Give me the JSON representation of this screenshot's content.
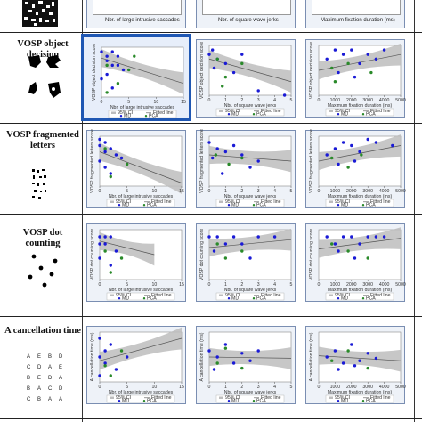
{
  "rows": [
    {
      "id": "row0",
      "label": ""
    },
    {
      "id": "row1",
      "label": "VOSP object decision"
    },
    {
      "id": "row2",
      "label": "VOSP fragmented letters"
    },
    {
      "id": "row3",
      "label": "VOSP dot counting"
    },
    {
      "id": "row4",
      "label": "A cancellation time"
    }
  ],
  "x_labels": {
    "saccades": "Nbr. of large intrusive saccades",
    "jerks": "Nbr. of square wave jerks",
    "fixation": "Maximum fixation duration (ms)"
  },
  "y_labels": {
    "row1": "VOSP object decision score",
    "row2": "VOSP fragmented letters score",
    "row3": "VOSP dot counting score",
    "row4": "A cancellation time (ms)"
  },
  "ticks": {
    "saccades": [
      "0",
      "5",
      "10",
      "15"
    ],
    "jerks": [
      "0",
      "1",
      "2",
      "3",
      "4",
      "5"
    ],
    "fixation": [
      "0",
      "1000",
      "2000",
      "3000",
      "4000",
      "5000"
    ]
  },
  "legend": {
    "ci": "95% CI",
    "fitted": "Fitted line",
    "md": "MD",
    "pca": "PCA"
  },
  "letters_grid": [
    [
      "A",
      "E",
      "B",
      "D"
    ],
    [
      "C",
      "D",
      "A",
      "E"
    ],
    [
      "B",
      "E",
      "D",
      "A"
    ],
    [
      "B",
      "A",
      "C",
      "D"
    ],
    [
      "C",
      "B",
      "A",
      "A"
    ]
  ],
  "colors": {
    "md": "#1a1ad6",
    "pca": "#2a8a2a",
    "ci": "#bdbdbd",
    "fit": "#555555",
    "highlight": "#1f57b3"
  },
  "chart_data": [
    {
      "type": "scatter",
      "row": "VOSP object decision",
      "x_var": "Nbr. of large intrusive saccades",
      "series": [
        {
          "name": "MD",
          "points": [
            [
              0,
              20
            ],
            [
              1,
              19
            ],
            [
              1,
              18
            ],
            [
              2,
              20
            ],
            [
              2,
              17
            ],
            [
              3,
              19
            ],
            [
              4,
              16
            ],
            [
              1,
              15
            ],
            [
              0,
              14
            ],
            [
              2,
              12
            ],
            [
              3,
              17
            ]
          ]
        },
        {
          "name": "PCA",
          "points": [
            [
              6,
              19
            ],
            [
              1,
              17
            ],
            [
              3,
              13
            ],
            [
              1,
              11
            ],
            [
              5,
              16
            ]
          ]
        }
      ],
      "fit": {
        "x": [
          0,
          15
        ],
        "y": [
          18.6,
          13
        ]
      }
    },
    {
      "type": "scatter",
      "row": "VOSP object decision",
      "x_var": "Nbr. of square wave jerks",
      "series": [
        {
          "name": "MD",
          "points": [
            [
              0,
              19
            ],
            [
              0.2,
              20
            ],
            [
              0.5,
              18
            ],
            [
              1,
              17
            ],
            [
              1.5,
              15
            ],
            [
              2,
              19
            ],
            [
              0.3,
              16
            ],
            [
              3,
              11
            ],
            [
              4.6,
              10
            ]
          ]
        },
        {
          "name": "PCA",
          "points": [
            [
              0.5,
              18
            ],
            [
              1,
              14
            ],
            [
              2,
              17
            ],
            [
              0.8,
              12
            ]
          ]
        }
      ],
      "fit": {
        "x": [
          0,
          5
        ],
        "y": [
          18,
          13
        ]
      }
    },
    {
      "type": "scatter",
      "row": "VOSP object decision",
      "x_var": "Maximum fixation duration (ms)",
      "series": [
        {
          "name": "MD",
          "points": [
            [
              500,
              18
            ],
            [
              1000,
              20
            ],
            [
              1500,
              19
            ],
            [
              2000,
              20
            ],
            [
              2500,
              17
            ],
            [
              3000,
              19
            ],
            [
              3500,
              18
            ],
            [
              1200,
              15
            ],
            [
              2200,
              14
            ],
            [
              4000,
              20
            ]
          ]
        },
        {
          "name": "PCA",
          "points": [
            [
              800,
              16
            ],
            [
              1800,
              17
            ],
            [
              3200,
              15
            ],
            [
              1000,
              13
            ]
          ]
        }
      ],
      "fit": {
        "x": [
          0,
          5000
        ],
        "y": [
          15.5,
          19
        ]
      }
    },
    {
      "type": "scatter",
      "row": "VOSP fragmented letters",
      "x_var": "Nbr. of large intrusive saccades",
      "series": [
        {
          "name": "MD",
          "points": [
            [
              0,
              20
            ],
            [
              1,
              19
            ],
            [
              0,
              18
            ],
            [
              2,
              17
            ],
            [
              1,
              16
            ],
            [
              3,
              15
            ],
            [
              0,
              13
            ],
            [
              1,
              11
            ],
            [
              2,
              9
            ],
            [
              4,
              14
            ]
          ]
        },
        {
          "name": "PCA",
          "points": [
            [
              1,
              17
            ],
            [
              5,
              12
            ],
            [
              2,
              8
            ]
          ]
        }
      ],
      "fit": {
        "x": [
          0,
          15
        ],
        "y": [
          16,
          6
        ]
      }
    },
    {
      "type": "scatter",
      "row": "VOSP fragmented letters",
      "x_var": "Nbr. of square wave jerks",
      "series": [
        {
          "name": "MD",
          "points": [
            [
              0,
              19
            ],
            [
              0.5,
              17
            ],
            [
              1,
              16
            ],
            [
              1.5,
              18
            ],
            [
              0.2,
              14
            ],
            [
              2,
              15
            ],
            [
              3,
              13
            ],
            [
              2.5,
              11
            ],
            [
              0.8,
              9
            ]
          ]
        },
        {
          "name": "PCA",
          "points": [
            [
              0.4,
              15
            ],
            [
              1.2,
              12
            ],
            [
              2,
              14
            ]
          ]
        }
      ],
      "fit": {
        "x": [
          0,
          5
        ],
        "y": [
          15,
          13
        ]
      }
    },
    {
      "type": "scatter",
      "row": "VOSP fragmented letters",
      "x_var": "Maximum fixation duration (ms)",
      "series": [
        {
          "name": "MD",
          "points": [
            [
              500,
              15
            ],
            [
              1000,
              17
            ],
            [
              1500,
              19
            ],
            [
              2000,
              18
            ],
            [
              2500,
              16
            ],
            [
              3000,
              20
            ],
            [
              1200,
              12
            ],
            [
              2200,
              13
            ],
            [
              3500,
              19
            ],
            [
              4500,
              18
            ]
          ]
        },
        {
          "name": "PCA",
          "points": [
            [
              800,
              14
            ],
            [
              1800,
              11
            ],
            [
              2600,
              15
            ]
          ]
        }
      ],
      "fit": {
        "x": [
          0,
          5000
        ],
        "y": [
          13,
          18
        ]
      }
    },
    {
      "type": "scatter",
      "row": "VOSP dot counting",
      "x_var": "Nbr. of large intrusive saccades",
      "series": [
        {
          "name": "MD",
          "points": [
            [
              0,
              10
            ],
            [
              1,
              10
            ],
            [
              0,
              9
            ],
            [
              2,
              10
            ],
            [
              1,
              9
            ],
            [
              3,
              8
            ],
            [
              0,
              7
            ],
            [
              2,
              6
            ]
          ]
        },
        {
          "name": "PCA",
          "points": [
            [
              1,
              8
            ],
            [
              4,
              7
            ],
            [
              2,
              5
            ]
          ]
        }
      ],
      "fit": {
        "x": [
          0,
          10
        ],
        "y": [
          9.4,
          7.5
        ]
      }
    },
    {
      "type": "scatter",
      "row": "VOSP dot counting",
      "x_var": "Nbr. of square wave jerks",
      "series": [
        {
          "name": "MD",
          "points": [
            [
              0,
              10
            ],
            [
              0.5,
              10
            ],
            [
              1,
              9
            ],
            [
              1.5,
              10
            ],
            [
              2,
              9
            ],
            [
              0.3,
              8
            ],
            [
              2.5,
              7
            ],
            [
              3,
              10
            ],
            [
              4,
              10
            ]
          ]
        },
        {
          "name": "PCA",
          "points": [
            [
              0.5,
              9
            ],
            [
              1,
              7
            ],
            [
              2,
              8
            ]
          ]
        }
      ],
      "fit": {
        "x": [
          0,
          5
        ],
        "y": [
          8.5,
          9.6
        ]
      }
    },
    {
      "type": "scatter",
      "row": "VOSP dot counting",
      "x_var": "Maximum fixation duration (ms)",
      "series": [
        {
          "name": "MD",
          "points": [
            [
              500,
              10
            ],
            [
              1000,
              9
            ],
            [
              1500,
              10
            ],
            [
              2000,
              10
            ],
            [
              2500,
              9
            ],
            [
              3000,
              10
            ],
            [
              3500,
              10
            ],
            [
              1200,
              8
            ],
            [
              2200,
              7
            ],
            [
              4000,
              10
            ]
          ]
        },
        {
          "name": "PCA",
          "points": [
            [
              800,
              9
            ],
            [
              1800,
              8
            ],
            [
              3000,
              7
            ]
          ]
        }
      ],
      "fit": {
        "x": [
          0,
          5000
        ],
        "y": [
          8.3,
          9.8
        ]
      }
    },
    {
      "type": "scatter",
      "row": "A cancellation time",
      "x_var": "Nbr. of large intrusive saccades",
      "series": [
        {
          "name": "MD",
          "points": [
            [
              0,
              60
            ],
            [
              1,
              50
            ],
            [
              0,
              45
            ],
            [
              2,
              55
            ],
            [
              1,
              40
            ],
            [
              3,
              35
            ],
            [
              0,
              30
            ],
            [
              5,
              45
            ]
          ]
        },
        {
          "name": "PCA",
          "points": [
            [
              1,
              38
            ],
            [
              4,
              50
            ],
            [
              2,
              30
            ]
          ]
        }
      ],
      "fit": {
        "x": [
          0,
          15
        ],
        "y": [
          42,
          60
        ]
      }
    },
    {
      "type": "scatter",
      "row": "A cancellation time",
      "x_var": "Nbr. of square wave jerks",
      "series": [
        {
          "name": "MD",
          "points": [
            [
              0,
              50
            ],
            [
              0.5,
              45
            ],
            [
              1,
              55
            ],
            [
              1.5,
              40
            ],
            [
              2,
              48
            ],
            [
              0.3,
              35
            ],
            [
              2.5,
              42
            ],
            [
              3,
              50
            ]
          ]
        },
        {
          "name": "PCA",
          "points": [
            [
              0.5,
              40
            ],
            [
              1,
              52
            ],
            [
              2,
              36
            ]
          ]
        }
      ],
      "fit": {
        "x": [
          0,
          5
        ],
        "y": [
          45,
          44
        ]
      }
    },
    {
      "type": "scatter",
      "row": "A cancellation time",
      "x_var": "Maximum fixation duration (ms)",
      "series": [
        {
          "name": "MD",
          "points": [
            [
              500,
              45
            ],
            [
              1000,
              50
            ],
            [
              1500,
              40
            ],
            [
              2000,
              55
            ],
            [
              2500,
              42
            ],
            [
              3000,
              48
            ],
            [
              1200,
              35
            ],
            [
              2200,
              38
            ],
            [
              3500,
              44
            ]
          ]
        },
        {
          "name": "PCA",
          "points": [
            [
              800,
              42
            ],
            [
              1800,
              50
            ],
            [
              3000,
              36
            ]
          ]
        }
      ],
      "fit": {
        "x": [
          0,
          5000
        ],
        "y": [
          46,
          42
        ]
      }
    }
  ]
}
